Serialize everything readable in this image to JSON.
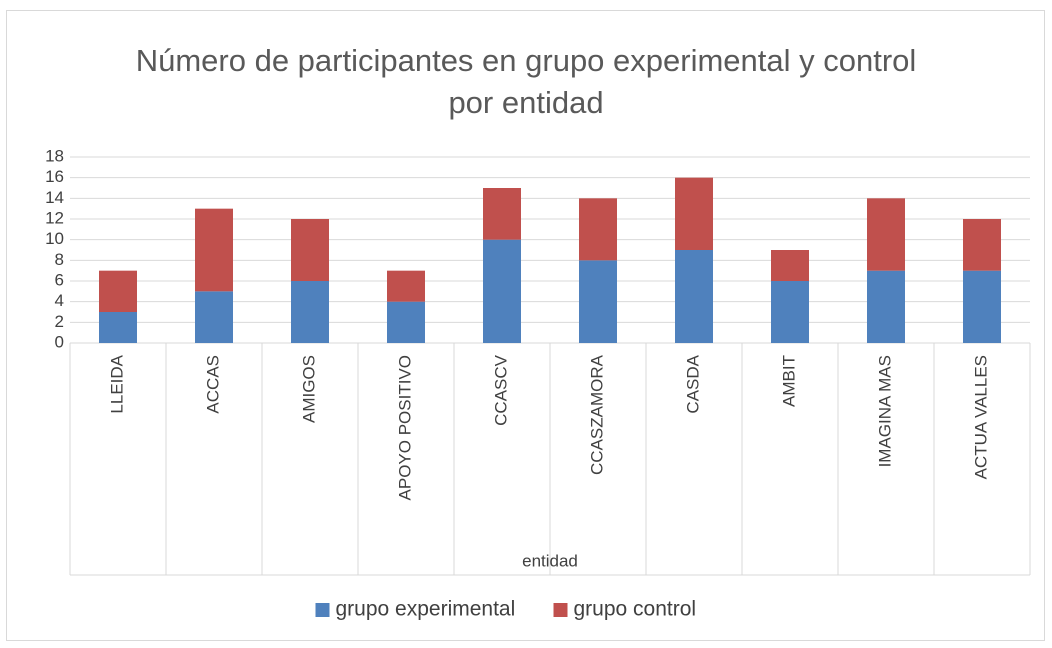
{
  "chart_data": {
    "type": "bar",
    "stacked": true,
    "title": "Número de participantes en grupo experimental y control por entidad",
    "x_label": "entidad",
    "categories": [
      "LLEIDA",
      "ACCAS",
      "AMIGOS",
      "APOYO POSITIVO",
      "CCASCV",
      "CCASZAMORA",
      "CASDA",
      "AMBIT",
      "IMAGINA MAS",
      "ACTUA VALLES"
    ],
    "series": [
      {
        "name": "grupo experimental",
        "color": "#4f81bd",
        "values": [
          3,
          5,
          6,
          4,
          10,
          8,
          9,
          6,
          7,
          7
        ]
      },
      {
        "name": "grupo control",
        "color": "#c0504d",
        "values": [
          4,
          8,
          6,
          3,
          5,
          6,
          7,
          3,
          7,
          5
        ]
      }
    ],
    "ylim": [
      0,
      18
    ],
    "yticks": [
      0,
      2,
      4,
      6,
      8,
      10,
      12,
      14,
      16,
      18
    ],
    "grid": true,
    "legend": "bottom"
  }
}
